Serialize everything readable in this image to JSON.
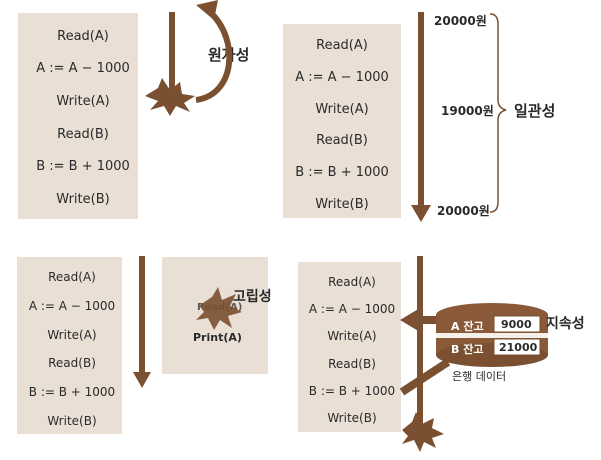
{
  "atomicity": {
    "ops": [
      "Read(A)",
      "A := A − 1000",
      "Write(A)",
      "Read(B)",
      "B := B + 1000",
      "Write(B)"
    ],
    "label": "원자성"
  },
  "consistency": {
    "ops": [
      "Read(A)",
      "A := A − 1000",
      "Write(A)",
      "Read(B)",
      "B := B + 1000",
      "Write(B)"
    ],
    "amounts": [
      "20000원",
      "19000원",
      "20000원"
    ],
    "label": "일관성"
  },
  "isolation": {
    "ops": [
      "Read(A)",
      "A := A − 1000",
      "Write(A)",
      "Read(B)",
      "B := B + 1000",
      "Write(B)"
    ],
    "read_label": "Read(A)",
    "print_label": "Print(A)",
    "label": "고립성"
  },
  "durability": {
    "ops": [
      "Read(A)",
      "A := A − 1000",
      "Write(A)",
      "Read(B)",
      "B := B + 1000",
      "Write(B)"
    ],
    "account_a_label": "A 잔고",
    "account_a_value": "9000",
    "account_b_label": "B 잔고",
    "account_b_value": "21000",
    "db_label": "은행 데이터",
    "label": "지속성"
  },
  "colors": {
    "box": "#e9dfd5",
    "arrow": "#7a5030"
  }
}
